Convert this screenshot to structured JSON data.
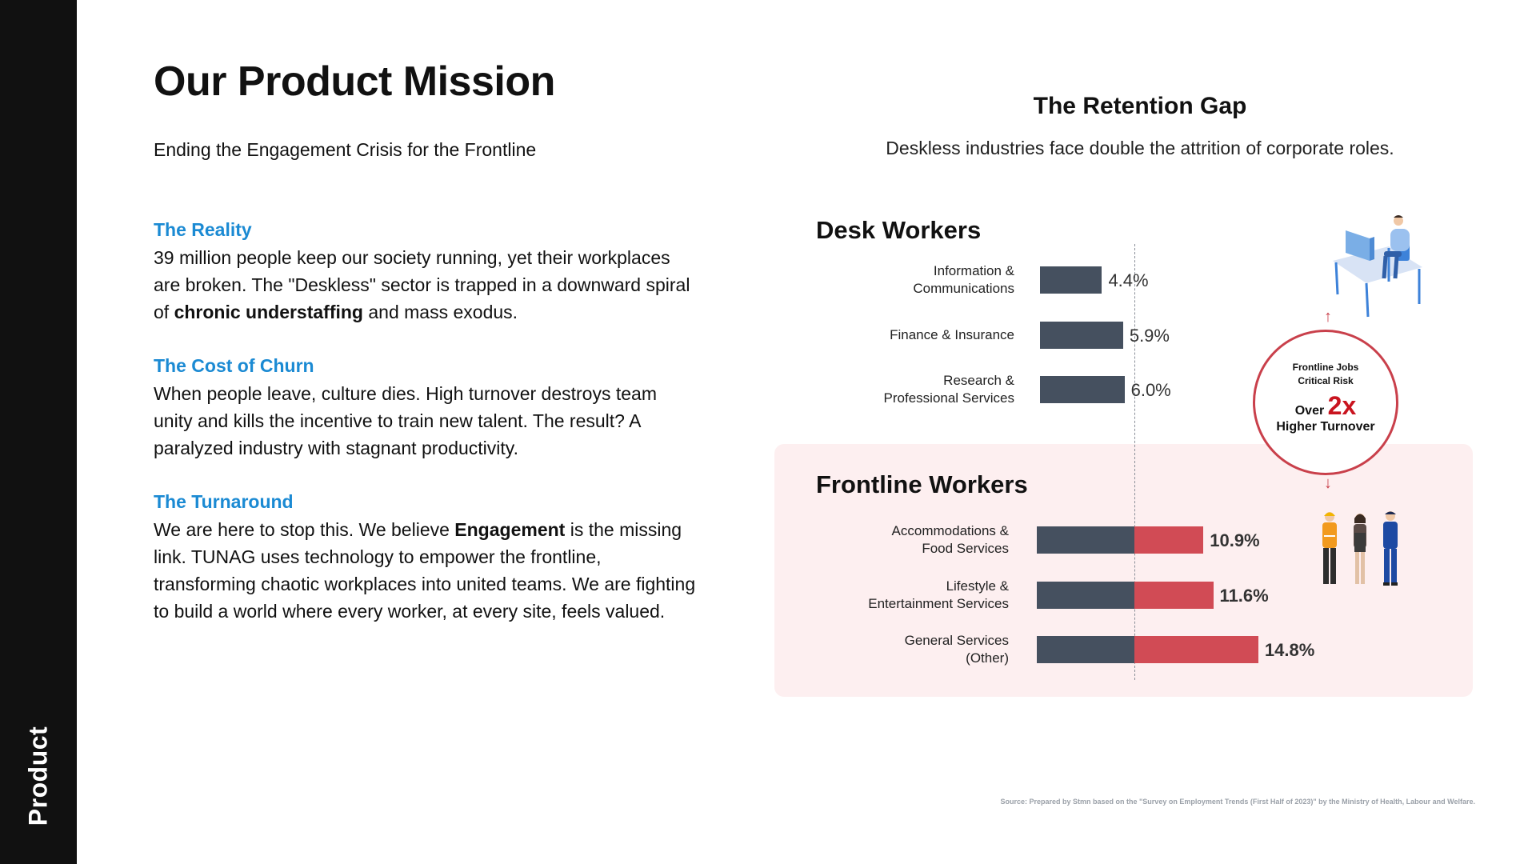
{
  "sidebar": {
    "label": "Product"
  },
  "header": {
    "title": "Our Product Mission",
    "subtitle": "Ending the Engagement Crisis for the Frontline"
  },
  "sections": [
    {
      "heading": "The Reality",
      "body": "39 million people keep our society running, yet their workplaces are broken. The \"Deskless\" sector is trapped in a downward spiral of <b>chronic understaffing</b> and mass exodus."
    },
    {
      "heading": "The Cost of Churn",
      "body": "When people leave, culture dies. High turnover destroys team unity and kills the incentive to train new talent. The result? A paralyzed industry with stagnant productivity."
    },
    {
      "heading": "The Turnaround",
      "body": "We are here to stop this. We believe <b>Engagement</b> is the missing link. TUNAG uses technology to empower the frontline, transforming chaotic workplaces into united teams. We are fighting to build a world where every worker, at every site, feels valued."
    }
  ],
  "chart_data": {
    "type": "bar",
    "orientation": "horizontal",
    "title": "The Retention Gap",
    "subtitle": "Deskless industries face double the attrition of corporate roles.",
    "unit": "%",
    "groups": [
      {
        "name": "Desk Workers",
        "categories": [
          "Information &\nCommunications",
          "Finance & Insurance",
          "Research &\nProfessional Services"
        ],
        "values": [
          4.4,
          5.9,
          6.0
        ],
        "value_labels": [
          "4.4%",
          "5.9%",
          "6.0%"
        ]
      },
      {
        "name": "Frontline Workers",
        "categories": [
          "Accommodations &\nFood Services",
          "Lifestyle &\nEntertainment Services",
          "General Services\n(Other)"
        ],
        "values": [
          10.9,
          11.6,
          14.8
        ],
        "value_labels": [
          "10.9%",
          "11.6%",
          "14.8%"
        ]
      }
    ],
    "reference_value": 6.0,
    "colors": {
      "desk": "#45505f",
      "frontline_excess": "#d14b55"
    }
  },
  "risk_badge": {
    "line1": "Frontline Jobs\nCritical Risk",
    "over_label": "Over",
    "multiplier": "2x",
    "line3": "Higher Turnover"
  },
  "source_note": "Source: Prepared by Stmn based on the \"Survey on Employment Trends (First Half of 2023)\" by the Ministry of Health, Labour and Welfare.",
  "colors": {
    "accent_blue": "#1b8ad3",
    "accent_red": "#c9141f",
    "sidebar": "#111111",
    "panel": "#fdeff0"
  },
  "icons": [
    "desk-worker-illustration",
    "frontline-workers-illustration",
    "arrow-up-icon",
    "arrow-down-icon"
  ]
}
